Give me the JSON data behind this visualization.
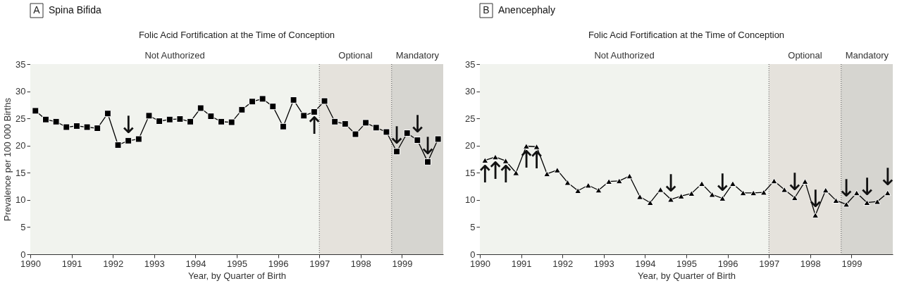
{
  "chart_data": [
    {
      "type": "line",
      "title": "Spina Bifida",
      "subtitle": "Folic Acid Fortification at the Time of Conception",
      "xlabel": "Year, by Quarter of Birth",
      "ylabel": "Prevalence per 100 000 Births",
      "x": [
        1990.125,
        1990.375,
        1990.625,
        1990.875,
        1991.125,
        1991.375,
        1991.625,
        1991.875,
        1992.125,
        1992.375,
        1992.625,
        1992.875,
        1993.125,
        1993.375,
        1993.625,
        1993.875,
        1994.125,
        1994.375,
        1994.625,
        1994.875,
        1995.125,
        1995.375,
        1995.625,
        1995.875,
        1996.125,
        1996.375,
        1996.625,
        1996.875,
        1997.125,
        1997.375,
        1997.625,
        1997.875,
        1998.125,
        1998.375,
        1998.625,
        1998.875,
        1999.125,
        1999.375,
        1999.625,
        1999.875
      ],
      "series": [
        {
          "color": "#000000",
          "values": [
            26.4,
            24.8,
            24.4,
            23.4,
            23.6,
            23.4,
            23.2,
            25.9,
            20.1,
            20.9,
            21.2,
            25.5,
            24.5,
            24.8,
            24.9,
            24.4,
            26.9,
            25.4,
            24.4,
            24.3,
            26.6,
            28.1,
            28.6,
            27.2,
            23.5,
            28.4,
            25.5,
            26.2,
            28.2,
            24.4,
            24.0,
            22.1,
            24.2,
            23.3,
            22.5,
            18.9,
            22.3,
            21.0,
            17.0,
            21.2
          ]
        }
      ],
      "marker": "square",
      "xlim": [
        1990,
        2000
      ],
      "xticks": [
        1990,
        1991,
        1992,
        1993,
        1994,
        1995,
        1996,
        1997,
        1998,
        1999
      ],
      "ylim": [
        0,
        35
      ],
      "yticks": [
        0,
        5,
        10,
        15,
        20,
        25,
        30,
        35
      ],
      "bands": [
        {
          "axis": "x",
          "from": 1990,
          "to": 1997,
          "label": "Not Authorized",
          "color": "#f1f3ee"
        },
        {
          "axis": "x",
          "from": 1997,
          "to": 1998.75,
          "label": "Optional",
          "color": "#e5e2dc"
        },
        {
          "axis": "x",
          "from": 1998.75,
          "to": 2000,
          "label": "Mandatory",
          "color": "#d6d5d0"
        }
      ],
      "ref_lines": [
        {
          "axis": "x",
          "value": 1997,
          "color": "#555555",
          "line_style": "dotted"
        },
        {
          "axis": "x",
          "value": 1998.75,
          "color": "#555555",
          "line_style": "dotted"
        }
      ],
      "annotations": [
        "A",
        {
          "text": "↓",
          "x": 1992.375,
          "y": 20.9
        },
        {
          "text": "↑",
          "x": 1996.875,
          "y": 26.2
        },
        {
          "text": "↓",
          "x": 1998.875,
          "y": 18.9
        },
        {
          "text": "↓",
          "x": 1999.375,
          "y": 21.0
        },
        {
          "text": "↓",
          "x": 1999.625,
          "y": 17.0
        }
      ]
    },
    {
      "type": "line",
      "title": "Anencephaly",
      "subtitle": "Folic Acid Fortification at the Time of Conception",
      "xlabel": "Year, by Quarter of Birth",
      "x": [
        1990.125,
        1990.375,
        1990.625,
        1990.875,
        1991.125,
        1991.375,
        1991.625,
        1991.875,
        1992.125,
        1992.375,
        1992.625,
        1992.875,
        1993.125,
        1993.375,
        1993.625,
        1993.875,
        1994.125,
        1994.375,
        1994.625,
        1994.875,
        1995.125,
        1995.375,
        1995.625,
        1995.875,
        1996.125,
        1996.375,
        1996.625,
        1996.875,
        1997.125,
        1997.375,
        1997.625,
        1997.875,
        1998.125,
        1998.375,
        1998.625,
        1998.875,
        1999.125,
        1999.375,
        1999.625,
        1999.875
      ],
      "series": [
        {
          "color": "#000000",
          "values": [
            17.3,
            17.9,
            17.2,
            15.0,
            19.9,
            19.8,
            14.8,
            15.5,
            13.2,
            11.7,
            12.7,
            11.8,
            13.4,
            13.5,
            14.4,
            10.6,
            9.5,
            11.9,
            10.1,
            10.7,
            11.2,
            13.0,
            11.0,
            10.3,
            13.0,
            11.3,
            11.3,
            11.4,
            13.5,
            11.9,
            10.4,
            13.4,
            7.2,
            11.8,
            9.9,
            9.2,
            11.3,
            9.5,
            9.7,
            11.3
          ]
        }
      ],
      "marker": "triangle",
      "xlim": [
        1990,
        2000
      ],
      "xticks": [
        1990,
        1991,
        1992,
        1993,
        1994,
        1995,
        1996,
        1997,
        1998,
        1999
      ],
      "ylim": [
        0,
        35
      ],
      "yticks": [
        0,
        5,
        10,
        15,
        20,
        25,
        30,
        35
      ],
      "bands": [
        {
          "axis": "x",
          "from": 1990,
          "to": 1997,
          "label": "Not Authorized",
          "color": "#f1f3ee"
        },
        {
          "axis": "x",
          "from": 1997,
          "to": 1998.75,
          "label": "Optional",
          "color": "#e5e2dc"
        },
        {
          "axis": "x",
          "from": 1998.75,
          "to": 2000,
          "label": "Mandatory",
          "color": "#d6d5d0"
        }
      ],
      "ref_lines": [
        {
          "axis": "x",
          "value": 1997,
          "color": "#555555",
          "line_style": "dotted"
        },
        {
          "axis": "x",
          "value": 1998.75,
          "color": "#555555",
          "line_style": "dotted"
        }
      ],
      "annotations": [
        "B",
        {
          "text": "↑",
          "x": 1990.125,
          "y": 17.3
        },
        {
          "text": "↑",
          "x": 1990.375,
          "y": 17.9
        },
        {
          "text": "↑",
          "x": 1990.625,
          "y": 17.2
        },
        {
          "text": "↑",
          "x": 1991.125,
          "y": 19.9
        },
        {
          "text": "↑",
          "x": 1991.375,
          "y": 19.8
        },
        {
          "text": "↓",
          "x": 1994.625,
          "y": 10.1
        },
        {
          "text": "↓",
          "x": 1995.875,
          "y": 10.3
        },
        {
          "text": "↓",
          "x": 1997.625,
          "y": 10.4
        },
        {
          "text": "↓",
          "x": 1998.125,
          "y": 7.2
        },
        {
          "text": "↓",
          "x": 1998.875,
          "y": 9.2
        },
        {
          "text": "↓",
          "x": 1999.375,
          "y": 9.5
        },
        {
          "text": "↓",
          "x": 1999.875,
          "y": 11.3
        }
      ]
    }
  ]
}
